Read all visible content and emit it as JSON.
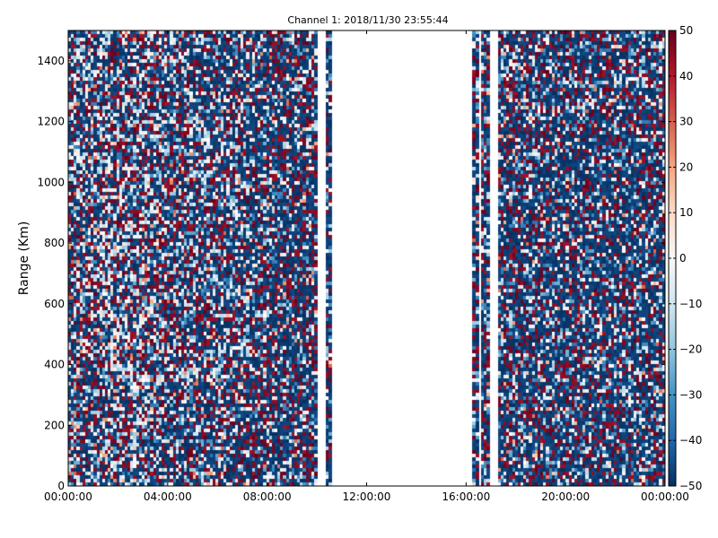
{
  "chart_data": {
    "type": "heatmap",
    "title": "Channel 1: 2018/11/30 23:55:44",
    "xlabel": "",
    "ylabel": "Range (Km)",
    "x_ticks": [
      "00:00:00",
      "04:00:00",
      "08:00:00",
      "12:00:00",
      "16:00:00",
      "20:00:00",
      "00:00:00"
    ],
    "y_ticks": [
      "0",
      "200",
      "400",
      "600",
      "800",
      "1000",
      "1200",
      "1400"
    ],
    "xlim_hours": [
      0,
      24
    ],
    "ylim": [
      0,
      1500
    ],
    "colorbar": {
      "range": [
        -50,
        50
      ],
      "ticks": [
        "50",
        "40",
        "30",
        "20",
        "10",
        "0",
        "−10",
        "−20",
        "−30",
        "−40",
        "−50"
      ],
      "colormap": "RdBu_r"
    },
    "data_gaps_hours": [
      [
        10.05,
        10.3
      ],
      [
        10.55,
        16.25
      ],
      [
        16.45,
        16.65
      ],
      [
        16.95,
        17.25
      ]
    ],
    "grid": false,
    "colors": {
      "low": "#053061",
      "mid": "#f7f7f7",
      "high": "#67001f"
    }
  }
}
